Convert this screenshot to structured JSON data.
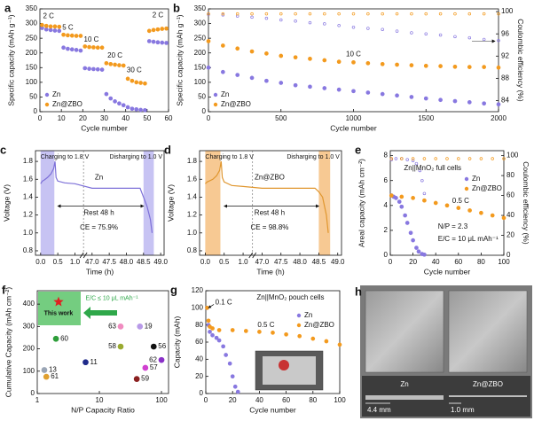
{
  "chart_data": [
    {
      "type": "scatter",
      "label": "a",
      "xlabel": "Cycle number",
      "ylabel": "Specific capacity (mAh g⁻¹)",
      "xlim": [
        0,
        60
      ],
      "xticks": [
        0,
        10,
        20,
        30,
        40,
        50,
        60
      ],
      "ylim": [
        0,
        350
      ],
      "yticks": [
        0,
        50,
        100,
        150,
        200,
        250,
        300,
        350
      ],
      "legend": "lower left",
      "annotations": [
        "2 C",
        "5 C",
        "10 C",
        "20 C",
        "30 C",
        "2 C"
      ],
      "series": [
        {
          "name": "Zn",
          "color": "#8878e0",
          "x": [
            1,
            3,
            5,
            7,
            9,
            11,
            13,
            15,
            17,
            19,
            21,
            23,
            25,
            27,
            29,
            31,
            33,
            35,
            37,
            39,
            41,
            43,
            45,
            47,
            49,
            51,
            53,
            55,
            57,
            59
          ],
          "values": [
            285,
            280,
            278,
            276,
            275,
            218,
            214,
            212,
            210,
            208,
            148,
            146,
            145,
            144,
            143,
            60,
            45,
            35,
            28,
            22,
            15,
            10,
            8,
            6,
            5,
            240,
            238,
            236,
            235,
            234
          ]
        },
        {
          "name": "Zn@ZBO",
          "color": "#f39a1e",
          "x": [
            1,
            3,
            5,
            7,
            9,
            11,
            13,
            15,
            17,
            19,
            21,
            23,
            25,
            27,
            29,
            31,
            33,
            35,
            37,
            39,
            41,
            43,
            45,
            47,
            49,
            51,
            53,
            55,
            57,
            59
          ],
          "values": [
            295,
            292,
            290,
            290,
            289,
            262,
            260,
            259,
            258,
            258,
            222,
            220,
            219,
            218,
            218,
            165,
            162,
            160,
            158,
            157,
            112,
            105,
            100,
            98,
            96,
            275,
            278,
            280,
            282,
            283
          ]
        }
      ]
    },
    {
      "type": "scatter",
      "label": "b",
      "xlabel": "Cycle number",
      "ylabel": "Specific capacity (mAh g⁻¹)",
      "y2label": "Coulombic efficiency (%)",
      "xlim": [
        0,
        2000
      ],
      "xticks": [
        0,
        500,
        1000,
        1500,
        2000
      ],
      "ylim": [
        0,
        350
      ],
      "yticks": [
        0,
        50,
        100,
        150,
        200,
        250,
        300,
        350
      ],
      "y2lim": [
        82,
        100.5
      ],
      "y2ticks": [
        84,
        88,
        92,
        96,
        100
      ],
      "legend": "lower left",
      "annotations": [
        "10 C"
      ],
      "series": [
        {
          "name": "Zn",
          "color": "#8878e0",
          "x": [
            0,
            100,
            200,
            300,
            400,
            500,
            600,
            700,
            800,
            900,
            1000,
            1100,
            1200,
            1300,
            1400,
            1500,
            1600,
            1700,
            1800,
            1900,
            2000
          ],
          "values": [
            150,
            135,
            125,
            115,
            105,
            98,
            90,
            85,
            80,
            75,
            70,
            65,
            60,
            55,
            50,
            45,
            40,
            36,
            32,
            28,
            25
          ]
        },
        {
          "name": "Zn@ZBO",
          "color": "#f39a1e",
          "x": [
            0,
            100,
            200,
            300,
            400,
            500,
            600,
            700,
            800,
            900,
            1000,
            1100,
            1200,
            1300,
            1400,
            1500,
            1600,
            1700,
            1800,
            1900,
            2000
          ],
          "values": [
            240,
            225,
            215,
            205,
            198,
            190,
            185,
            180,
            175,
            170,
            168,
            165,
            162,
            160,
            158,
            156,
            155,
            153,
            152,
            152,
            150
          ]
        },
        {
          "color": "#8878e0",
          "axis": "y2",
          "x": [
            0,
            100,
            200,
            300,
            400,
            500,
            600,
            700,
            800,
            900,
            1000,
            1100,
            1200,
            1300,
            1400,
            1500,
            1600,
            1700,
            1800,
            1900,
            2000
          ],
          "values": [
            99.5,
            99.4,
            99.2,
            99.0,
            98.8,
            98.5,
            98.3,
            98.0,
            97.8,
            97.5,
            97.2,
            97.0,
            96.8,
            96.5,
            96.2,
            96.0,
            95.8,
            95.5,
            95.3,
            95.0,
            94.8
          ]
        },
        {
          "color": "#f39a1e",
          "axis": "y2",
          "x": [
            0,
            100,
            200,
            300,
            400,
            500,
            600,
            700,
            800,
            900,
            1000,
            1100,
            1200,
            1300,
            1400,
            1500,
            1600,
            1700,
            1800,
            1900,
            2000
          ],
          "values": [
            99.6,
            99.6,
            99.6,
            99.6,
            99.6,
            99.6,
            99.6,
            99.6,
            99.6,
            99.6,
            99.6,
            99.6,
            99.6,
            99.6,
            99.6,
            99.6,
            99.6,
            99.6,
            99.6,
            99.6,
            99.6
          ]
        }
      ]
    },
    {
      "type": "line",
      "label": "c",
      "xlabel": "Time (h)",
      "ylabel": "Voltage (V)",
      "xlim": [
        -0.15,
        49.1
      ],
      "xbreak": [
        1.0,
        47.0
      ],
      "xticks": [
        {
          "value": 0,
          "label": "0.0"
        },
        0.5,
        {
          "value": 1,
          "label": "1.0"
        },
        {
          "value": 47,
          "label": "47.0"
        },
        47.5,
        {
          "value": 48,
          "label": "48.0"
        },
        48.5,
        {
          "value": 49,
          "label": "49.0"
        }
      ],
      "ylim": [
        0.75,
        1.92
      ],
      "yticks": [
        0.8,
        {
          "value": 1,
          "label": "1.0"
        },
        1.2,
        1.4,
        1.6,
        1.8
      ],
      "spans": [
        [
          0,
          0.4
        ],
        [
          48.5,
          48.8
        ]
      ],
      "span_color": "#b9b4f0",
      "annotations": [
        "Charging to 1.8 V",
        "Disharging to 1.0 V",
        "Zn",
        "Rest 48 h",
        "CE = 75.9%"
      ],
      "series": [
        {
          "color": "#7d70d8",
          "x": [
            0,
            0.05,
            0.1,
            0.2,
            0.3,
            0.38,
            0.42,
            0.45,
            0.5,
            0.7,
            1.0,
            47.0,
            47.3,
            47.6,
            48.0,
            48.4,
            48.5,
            48.6,
            48.7,
            48.75
          ],
          "values": [
            1.55,
            1.58,
            1.59,
            1.62,
            1.66,
            1.72,
            1.8,
            1.62,
            1.58,
            1.56,
            1.55,
            1.5,
            1.5,
            1.5,
            1.5,
            1.5,
            1.4,
            1.3,
            1.15,
            1.0
          ]
        }
      ]
    },
    {
      "type": "line",
      "label": "d",
      "xlabel": "Time (h)",
      "ylabel": "Voltage (V)",
      "xlim": [
        -0.15,
        49.1
      ],
      "xbreak": [
        1.0,
        47.0
      ],
      "xticks": [
        {
          "value": 0,
          "label": "0.0"
        },
        0.5,
        {
          "value": 1,
          "label": "1.0"
        },
        {
          "value": 47,
          "label": "47.0"
        },
        47.5,
        {
          "value": 48,
          "label": "48.0"
        },
        48.5,
        {
          "value": 49,
          "label": "49.0"
        }
      ],
      "ylim": [
        0.75,
        1.92
      ],
      "yticks": [
        0.8,
        {
          "value": 1,
          "label": "1.0"
        },
        1.2,
        1.4,
        1.6,
        1.8
      ],
      "spans": [
        [
          0,
          0.4
        ],
        [
          48.5,
          48.8
        ]
      ],
      "span_color": "#f5bb78",
      "annotations": [
        "Charging to 1.8 V",
        "Disharging to 1.0 V",
        "Zn@ZBO",
        "Rest 48 h",
        "CE = 98.8%"
      ],
      "series": [
        {
          "color": "#e0962e",
          "x": [
            0,
            0.05,
            0.1,
            0.2,
            0.3,
            0.38,
            0.42,
            0.45,
            0.5,
            0.7,
            1.0,
            47.0,
            47.3,
            47.6,
            48.0,
            48.4,
            48.5,
            48.6,
            48.7,
            48.75
          ],
          "values": [
            1.55,
            1.57,
            1.58,
            1.6,
            1.64,
            1.7,
            1.8,
            1.62,
            1.57,
            1.53,
            1.52,
            1.5,
            1.5,
            1.5,
            1.5,
            1.5,
            1.46,
            1.4,
            1.2,
            1.0
          ]
        }
      ]
    },
    {
      "type": "scatter",
      "label": "e",
      "xlabel": "Cycle number",
      "ylabel": "Areal capacity (mAh cm⁻²)",
      "y2label": "Coulombic efficiency (%)",
      "xlim": [
        0,
        100
      ],
      "xticks": [
        0,
        20,
        40,
        60,
        80,
        100
      ],
      "ylim": [
        0,
        8.4
      ],
      "yticks": [
        0,
        2,
        4,
        6,
        8
      ],
      "y2lim": [
        0,
        105
      ],
      "y2ticks": [
        0,
        20,
        40,
        60,
        80,
        100
      ],
      "legend": "center right",
      "annotations": [
        "Zn||MnO₂ full cells",
        "0.5 C",
        "N/P = 2.3",
        "E/C = 10 μL mAh⁻¹"
      ],
      "series": [
        {
          "name": "Zn",
          "color": "#8878e0",
          "x": [
            1,
            3,
            5,
            8,
            10,
            13,
            15,
            18,
            20,
            23,
            25,
            28,
            30
          ],
          "values": [
            4.8,
            4.7,
            4.6,
            4.3,
            3.9,
            3.2,
            2.6,
            1.8,
            1.2,
            0.6,
            0.3,
            0.1,
            0.05
          ]
        },
        {
          "name": "Zn@ZBO",
          "color": "#f39a1e",
          "x": [
            1,
            10,
            20,
            30,
            40,
            50,
            60,
            70,
            80,
            90,
            100
          ],
          "values": [
            4.8,
            4.7,
            4.6,
            4.4,
            4.2,
            4.0,
            3.8,
            3.6,
            3.4,
            3.2,
            3.0
          ]
        },
        {
          "color": "#8878e0",
          "axis": "y2",
          "x": [
            1,
            5,
            10,
            15,
            20,
            23,
            26,
            28,
            30
          ],
          "values": [
            96,
            97,
            97,
            96,
            95,
            92,
            85,
            75,
            62
          ]
        },
        {
          "color": "#f39a1e",
          "axis": "y2",
          "x": [
            1,
            10,
            20,
            30,
            40,
            50,
            60,
            70,
            80,
            90,
            100
          ],
          "values": [
            97,
            97,
            97,
            97,
            97,
            97,
            97,
            97,
            97,
            97,
            97
          ]
        }
      ]
    },
    {
      "type": "scatter",
      "label": "f",
      "xlabel": "N/P Capacity Ratio",
      "ylabel": "Cumulative Capacity (mAh cm⁻²)",
      "xscale": "log",
      "xlim": [
        1,
        130
      ],
      "xticks": [
        1,
        10,
        100
      ],
      "ylim": [
        0,
        460
      ],
      "yticks": [
        0,
        100,
        200,
        300,
        400
      ],
      "annotations": [
        "E/C ≤ 10 μL mAh⁻¹"
      ],
      "highlight": {
        "label": "This work",
        "x": 2.2,
        "value": 410,
        "color": "#e02020"
      },
      "series": [
        {
          "x": [
            2,
            1.3,
            1.4,
            6,
            22,
            45,
            22,
            40,
            75,
            55,
            100
          ],
          "values": [
            245,
            105,
            75,
            140,
            300,
            300,
            210,
            65,
            210,
            115,
            150
          ],
          "labels": [
            "60",
            "13",
            "61",
            "11",
            "63",
            "19",
            "58",
            "59",
            "56",
            "57",
            "62"
          ],
          "colors": [
            "#2e9e3a",
            "#9aa5b5",
            "#e0a030",
            "#1f2a8a",
            "#f08cc0",
            "#b89ae8",
            "#9aaa30",
            "#8b2020",
            "#111111",
            "#d040d0",
            "#8a30c8"
          ]
        }
      ]
    },
    {
      "type": "scatter",
      "label": "g",
      "xlabel": "Cycle number",
      "ylabel": "Capacity (mAh)",
      "xlim": [
        0,
        100
      ],
      "xticks": [
        0,
        20,
        40,
        60,
        80,
        100
      ],
      "ylim": [
        0,
        120
      ],
      "yticks": [
        0,
        20,
        40,
        60,
        80,
        100,
        120
      ],
      "legend": "upper right",
      "annotations": [
        "0.1 C",
        "0.5 C",
        "Zn||MnO₂ pouch cells"
      ],
      "series": [
        {
          "name": "Zn",
          "color": "#8878e0",
          "x": [
            1,
            2,
            3,
            5,
            8,
            10,
            13,
            15,
            18,
            20,
            22,
            24
          ],
          "values": [
            100,
            80,
            72,
            68,
            65,
            62,
            55,
            45,
            35,
            20,
            8,
            2
          ]
        },
        {
          "name": "Zn@ZBO",
          "color": "#f39a1e",
          "x": [
            1,
            2,
            3,
            5,
            10,
            20,
            30,
            40,
            50,
            60,
            70,
            80,
            90,
            100
          ],
          "values": [
            100,
            85,
            78,
            76,
            74,
            74,
            73,
            72,
            71,
            69,
            67,
            64,
            61,
            57
          ]
        }
      ]
    }
  ],
  "photo": {
    "label": "h",
    "captions": [
      "Zn",
      "Zn@ZBO"
    ],
    "thickness": [
      "4.4 mm",
      "1.0 mm"
    ]
  }
}
